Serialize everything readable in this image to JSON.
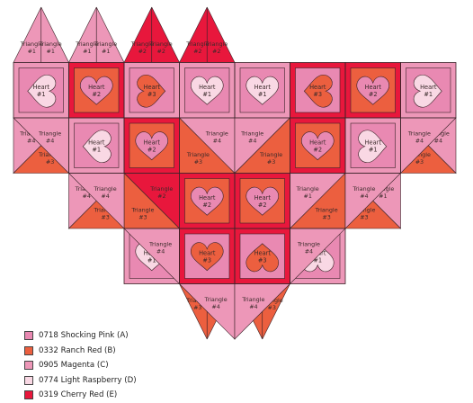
{
  "colors": {
    "A": "#e989b2",
    "B": "#ec5f3f",
    "C": "#ed97b8",
    "D": "#f9d8e4",
    "E": "#e8173c",
    "outline": "#3a2328"
  },
  "legend": [
    {
      "code": "A",
      "label": "0718 Shocking Pink (A)"
    },
    {
      "code": "B",
      "label": "0332 Ranch Red (B)"
    },
    {
      "code": "C",
      "label": "0905 Magenta (C)"
    },
    {
      "code": "D",
      "label": "0774 Light Raspberry (D)"
    },
    {
      "code": "E",
      "label": "0319 Cherry Red (E)"
    }
  ],
  "labels": {
    "triangle_1": [
      "Triangle",
      "#1"
    ],
    "triangle_2": [
      "Triangle",
      "#2"
    ],
    "triangle_3": [
      "Triangle",
      "#3"
    ],
    "triangle_4": [
      "Triangle",
      "#4"
    ],
    "heart_1": [
      "Heart",
      "#1"
    ],
    "heart_2": [
      "Heart",
      "#2"
    ],
    "heart_3": [
      "Heart",
      "#3"
    ]
  },
  "blocks": [
    {
      "type": "top",
      "r": 0,
      "c": 0,
      "left": "C",
      "right": "C",
      "labels": [
        "triangle_1",
        "triangle_1"
      ]
    },
    {
      "type": "top",
      "r": 0,
      "c": 1,
      "left": "C",
      "right": "C",
      "labels": [
        "triangle_1",
        "triangle_1"
      ]
    },
    {
      "type": "top",
      "r": 0,
      "c": 2,
      "left": "E",
      "right": "E",
      "labels": [
        "triangle_2",
        "triangle_2"
      ]
    },
    {
      "type": "top",
      "r": 0,
      "c": 3,
      "left": "E",
      "right": "E",
      "labels": [
        "triangle_2",
        "triangle_2"
      ]
    },
    {
      "type": "heart",
      "r": 1,
      "c": 0,
      "frame": "C",
      "bg": "A",
      "heart": "D",
      "rot": 90,
      "label": "heart_1"
    },
    {
      "type": "heart",
      "r": 1,
      "c": 1,
      "frame": "E",
      "bg": "B",
      "heart": "A",
      "rot": 0,
      "label": "heart_2"
    },
    {
      "type": "heart",
      "r": 1,
      "c": 2,
      "frame": "C",
      "bg": "A",
      "heart": "B",
      "rot": -90,
      "label": "heart_3"
    },
    {
      "type": "heart",
      "r": 1,
      "c": 3,
      "frame": "C",
      "bg": "A",
      "heart": "D",
      "rot": 0,
      "label": "heart_1"
    },
    {
      "type": "heart",
      "r": 1,
      "c": 4,
      "frame": "C",
      "bg": "A",
      "heart": "D",
      "rot": 0,
      "label": "heart_1"
    },
    {
      "type": "heart",
      "r": 1,
      "c": 5,
      "frame": "E",
      "bg": "A",
      "heart": "B",
      "rot": 90,
      "label": "heart_3"
    },
    {
      "type": "heart",
      "r": 1,
      "c": 6,
      "frame": "E",
      "bg": "B",
      "heart": "A",
      "rot": 0,
      "label": "heart_2"
    },
    {
      "type": "heart",
      "r": 1,
      "c": 7,
      "frame": "C",
      "bg": "A",
      "heart": "D",
      "rot": -90,
      "label": "heart_1"
    },
    {
      "type": "diag",
      "r": 2,
      "c": 0,
      "dir": "up",
      "first": "B",
      "second": "C",
      "labels": [
        "triangle_3",
        "triangle_4"
      ]
    },
    {
      "type": "heart",
      "r": 2,
      "c": 1,
      "frame": "C",
      "bg": "A",
      "heart": "D",
      "rot": 90,
      "label": "heart_1"
    },
    {
      "type": "heart",
      "r": 2,
      "c": 2,
      "frame": "E",
      "bg": "B",
      "heart": "A",
      "rot": 0,
      "label": "heart_2"
    },
    {
      "type": "diag",
      "r": 2,
      "c": 3,
      "dir": "down",
      "first": "C",
      "second": "B",
      "labels": [
        "triangle_4",
        "triangle_3"
      ]
    },
    {
      "type": "diag",
      "r": 2,
      "c": 4,
      "dir": "up",
      "first": "B",
      "second": "C",
      "labels": [
        "triangle_3",
        "triangle_4"
      ]
    },
    {
      "type": "heart",
      "r": 2,
      "c": 5,
      "frame": "E",
      "bg": "B",
      "heart": "A",
      "rot": 0,
      "label": "heart_2"
    },
    {
      "type": "heart",
      "r": 2,
      "c": 6,
      "frame": "C",
      "bg": "A",
      "heart": "D",
      "rot": -90,
      "label": "heart_1"
    },
    {
      "type": "diag",
      "r": 2,
      "c": 7,
      "dir": "down",
      "first": "C",
      "second": "B",
      "labels": [
        "triangle_4",
        "triangle_3"
      ]
    },
    {
      "type": "diag",
      "r": 3,
      "c": 1,
      "dir": "up",
      "first": "B",
      "second": "C",
      "labels": [
        "triangle_3",
        "triangle_4"
      ]
    },
    {
      "type": "diag",
      "r": 3,
      "c": 2,
      "dir": "down",
      "first": "E",
      "second": "B",
      "labels": [
        "triangle_2",
        "triangle_3"
      ]
    },
    {
      "type": "heart",
      "r": 3,
      "c": 3,
      "frame": "E",
      "bg": "B",
      "heart": "A",
      "rot": 0,
      "label": "heart_2"
    },
    {
      "type": "heart",
      "r": 3,
      "c": 4,
      "frame": "E",
      "bg": "B",
      "heart": "A",
      "rot": 0,
      "label": "heart_2"
    },
    {
      "type": "diag",
      "r": 3,
      "c": 5,
      "dir": "up",
      "first": "B",
      "second": "C",
      "labels": [
        "triangle_3",
        "triangle_1"
      ]
    },
    {
      "type": "diag",
      "r": 3,
      "c": 6,
      "dir": "down",
      "first": "C",
      "second": "B",
      "labels": [
        "triangle_1",
        "triangle_3"
      ]
    },
    {
      "type": "heart",
      "r": 4,
      "c": 2,
      "frame": "C",
      "bg": "A",
      "heart": "D",
      "rot": 0,
      "label": "heart_1"
    },
    {
      "type": "heart",
      "r": 4,
      "c": 3,
      "frame": "E",
      "bg": "A",
      "heart": "B",
      "rot": 0,
      "label": "heart_3"
    },
    {
      "type": "heart",
      "r": 4,
      "c": 4,
      "frame": "E",
      "bg": "A",
      "heart": "B",
      "rot": 180,
      "label": "heart_3"
    },
    {
      "type": "heart",
      "r": 4,
      "c": 5,
      "frame": "C",
      "bg": "A",
      "heart": "D",
      "rot": 180,
      "label": "heart_1"
    },
    {
      "type": "bottom",
      "r": 5,
      "c": 3,
      "left": "B",
      "right": "B",
      "labels": [
        "triangle_3",
        "triangle_3"
      ]
    },
    {
      "type": "bottom",
      "r": 5,
      "c": 4,
      "left": "B",
      "right": "B",
      "labels": [
        "triangle_3",
        "triangle_3"
      ]
    }
  ],
  "edge_triangles": [
    {
      "cell": [
        0,
        0
      ],
      "corner": "tr",
      "fill": "C",
      "label": "triangle_4"
    },
    {
      "cell": [
        0,
        7
      ],
      "corner": "tl",
      "fill": "C",
      "label": "triangle_4"
    },
    {
      "cell": [
        1,
        1
      ],
      "corner": "tr",
      "fill": "C",
      "label": "triangle_4"
    },
    {
      "cell": [
        1,
        6
      ],
      "corner": "tl",
      "fill": "C",
      "label": "triangle_4"
    },
    {
      "cell": [
        2,
        2
      ],
      "corner": "tr",
      "fill": "C",
      "label": "triangle_4"
    },
    {
      "cell": [
        2,
        5
      ],
      "corner": "tl",
      "fill": "C",
      "label": "triangle_4"
    },
    {
      "cell": [
        3,
        3
      ],
      "corner": "tr",
      "fill": "C",
      "label": "triangle_4"
    },
    {
      "cell": [
        3,
        4
      ],
      "corner": "tl",
      "fill": "C",
      "label": "triangle_4"
    }
  ],
  "edge_triangle_rows": [
    2,
    3,
    4,
    5
  ]
}
